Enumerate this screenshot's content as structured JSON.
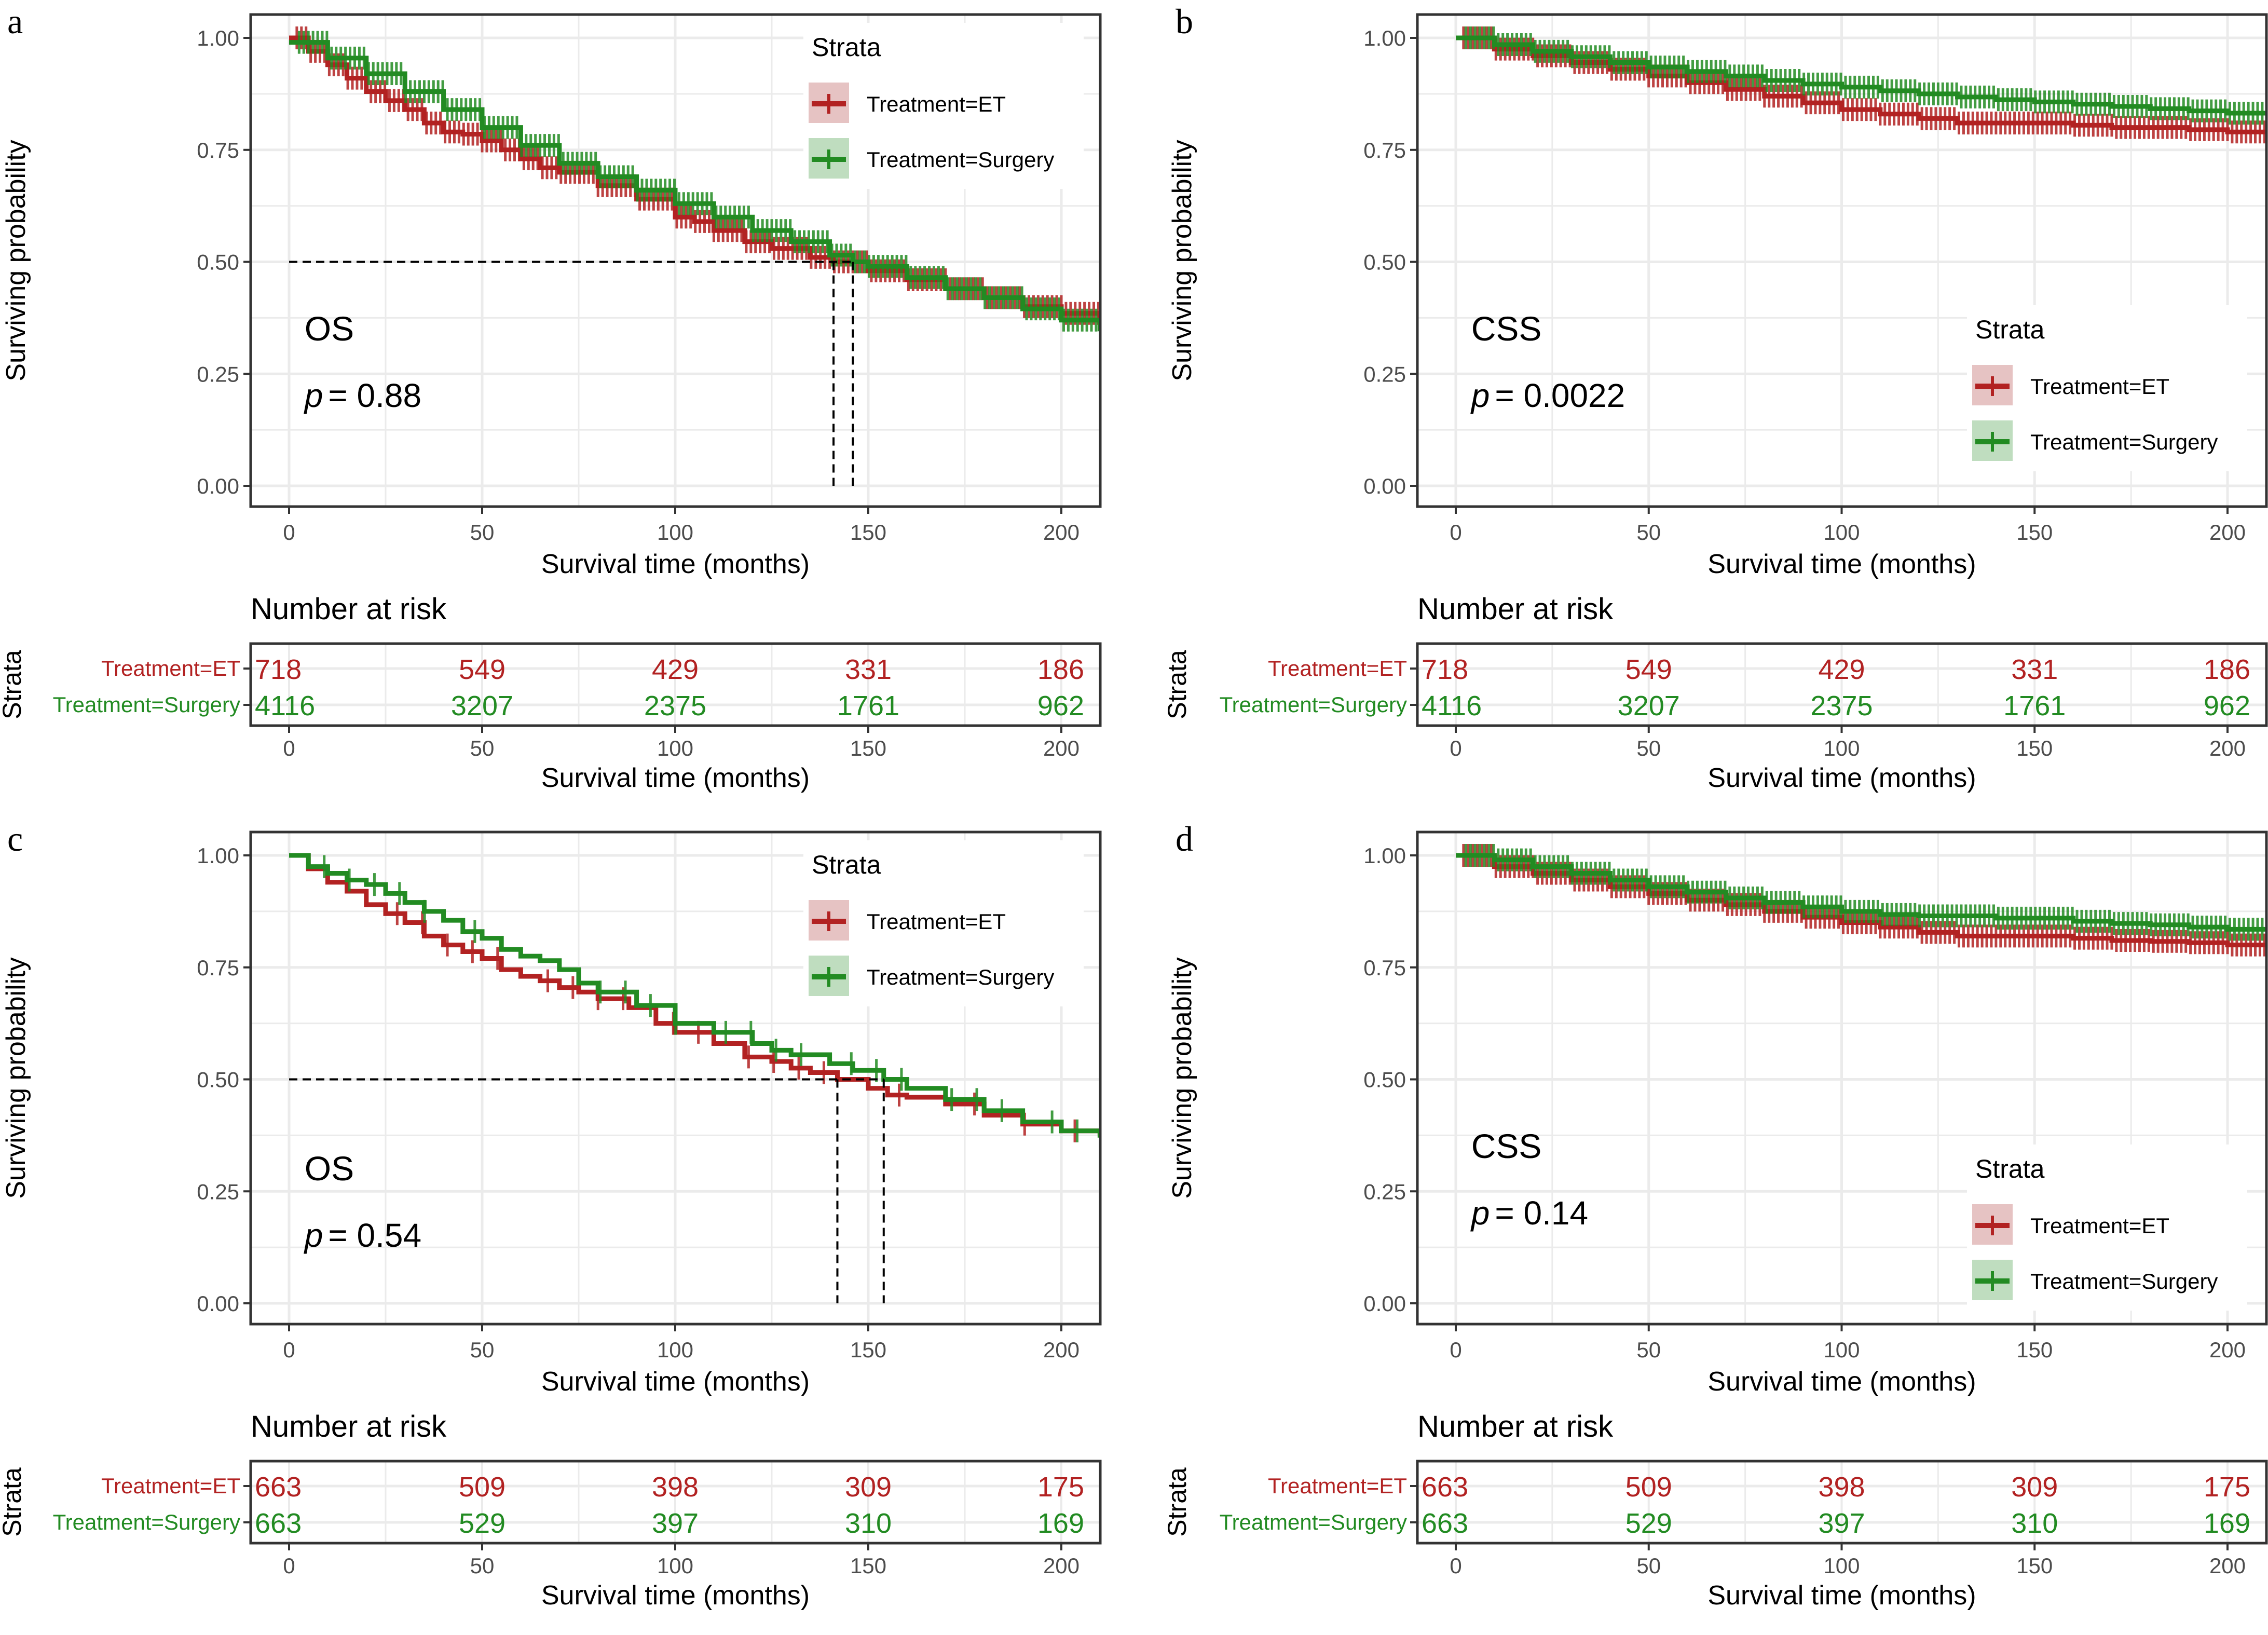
{
  "figure": {
    "colors": {
      "et": "#B22222",
      "surgery": "#228B22",
      "et_key_bg": "#E6C3C3",
      "surgery_key_bg": "#BFDDBF",
      "grid": "#EBEBEB",
      "frame": "#333333",
      "median_line": "#000000"
    }
  },
  "chart_data": [
    {
      "panel": "a",
      "type": "line",
      "title": "",
      "annotation": "OS",
      "p_label": "p",
      "p_value": "= 0.88",
      "xlabel": "Survival time (months)",
      "ylabel": "Surviving probability",
      "xlim": [
        -10,
        210
      ],
      "ylim": [
        -0.05,
        1.05
      ],
      "x_ticks": [
        "0",
        "50",
        "100",
        "150",
        "200"
      ],
      "x_tick_values": [
        0,
        50,
        100,
        150,
        200
      ],
      "y_ticks": [
        "0.00",
        "0.25",
        "0.50",
        "0.75",
        "1.00"
      ],
      "y_tick_values": [
        0,
        0.25,
        0.5,
        0.75,
        1.0
      ],
      "grid": true,
      "legend": {
        "title": "Strata",
        "position": "top-right",
        "entries": [
          "Treatment=ET",
          "Treatment=Surgery"
        ]
      },
      "median_survival": {
        "y": 0.5,
        "x": [
          141,
          146
        ]
      },
      "censor_density": "high",
      "series": [
        {
          "name": "Treatment=ET",
          "color_key": "et",
          "x": [
            0,
            5,
            10,
            15,
            20,
            25,
            30,
            35,
            40,
            45,
            50,
            55,
            60,
            65,
            70,
            80,
            90,
            100,
            105,
            110,
            118,
            125,
            135,
            141,
            150,
            160,
            170,
            180,
            190,
            200,
            210
          ],
          "y": [
            1.0,
            0.97,
            0.94,
            0.91,
            0.88,
            0.86,
            0.84,
            0.81,
            0.79,
            0.785,
            0.77,
            0.75,
            0.73,
            0.71,
            0.7,
            0.67,
            0.64,
            0.6,
            0.59,
            0.57,
            0.545,
            0.53,
            0.51,
            0.5,
            0.48,
            0.46,
            0.44,
            0.42,
            0.4,
            0.385,
            0.375
          ]
        },
        {
          "name": "Treatment=Surgery",
          "color_key": "surgery",
          "x": [
            0,
            10,
            20,
            30,
            40,
            50,
            60,
            70,
            80,
            90,
            100,
            110,
            120,
            130,
            140,
            146,
            150,
            160,
            170,
            180,
            190,
            200,
            210
          ],
          "y": [
            0.99,
            0.955,
            0.92,
            0.88,
            0.84,
            0.8,
            0.76,
            0.72,
            0.69,
            0.66,
            0.63,
            0.6,
            0.57,
            0.545,
            0.515,
            0.5,
            0.49,
            0.465,
            0.44,
            0.42,
            0.395,
            0.37,
            0.345
          ]
        }
      ],
      "risk_table": {
        "title": "Number at risk",
        "strata_axis_label": "Strata",
        "xlabel": "Survival time (months)",
        "times": [
          0,
          50,
          100,
          150,
          200
        ],
        "rows": [
          {
            "label": "Treatment=ET",
            "color_key": "et",
            "values": [
              "718",
              "549",
              "429",
              "331",
              "186"
            ]
          },
          {
            "label": "Treatment=Surgery",
            "color_key": "surgery",
            "values": [
              "4116",
              "3207",
              "2375",
              "1761",
              "962"
            ]
          }
        ]
      }
    },
    {
      "panel": "b",
      "type": "line",
      "title": "",
      "annotation": "CSS",
      "p_label": "p",
      "p_value": "= 0.0022",
      "xlabel": "Survival time (months)",
      "ylabel": "Surviving probability",
      "xlim": [
        -10,
        200
      ],
      "ylim": [
        -0.05,
        1.05
      ],
      "x_ticks": [
        "0",
        "50",
        "100",
        "150",
        "200"
      ],
      "x_tick_values": [
        0,
        50,
        100,
        150,
        200
      ],
      "y_ticks": [
        "0.00",
        "0.25",
        "0.50",
        "0.75",
        "1.00"
      ],
      "y_tick_values": [
        0,
        0.25,
        0.5,
        0.75,
        1.0
      ],
      "grid": true,
      "legend": {
        "title": "Strata",
        "position": "bottom-right",
        "entries": [
          "Treatment=ET",
          "Treatment=Surgery"
        ]
      },
      "median_survival": null,
      "censor_density": "high",
      "series": [
        {
          "name": "Treatment=ET",
          "color_key": "et",
          "x": [
            0,
            10,
            20,
            30,
            40,
            50,
            60,
            70,
            80,
            90,
            100,
            110,
            120,
            130,
            140,
            150,
            160,
            170,
            180,
            190,
            200,
            210
          ],
          "y": [
            1.0,
            0.975,
            0.96,
            0.945,
            0.93,
            0.915,
            0.9,
            0.885,
            0.87,
            0.855,
            0.84,
            0.83,
            0.82,
            0.81,
            0.81,
            0.81,
            0.805,
            0.8,
            0.8,
            0.795,
            0.79,
            0.785
          ]
        },
        {
          "name": "Treatment=Surgery",
          "color_key": "surgery",
          "x": [
            0,
            10,
            20,
            30,
            40,
            50,
            60,
            70,
            80,
            90,
            100,
            110,
            120,
            130,
            140,
            150,
            160,
            170,
            180,
            190,
            200,
            210
          ],
          "y": [
            1.0,
            0.985,
            0.97,
            0.958,
            0.945,
            0.935,
            0.925,
            0.915,
            0.905,
            0.897,
            0.89,
            0.882,
            0.875,
            0.868,
            0.862,
            0.857,
            0.852,
            0.847,
            0.842,
            0.837,
            0.832,
            0.828
          ]
        }
      ],
      "risk_table": {
        "title": "Number at risk",
        "strata_axis_label": "Strata",
        "xlabel": "Survival time (months)",
        "times": [
          0,
          50,
          100,
          150,
          200
        ],
        "rows": [
          {
            "label": "Treatment=ET",
            "color_key": "et",
            "values": [
              "718",
              "549",
              "429",
              "331",
              "186"
            ]
          },
          {
            "label": "Treatment=Surgery",
            "color_key": "surgery",
            "values": [
              "4116",
              "3207",
              "2375",
              "1761",
              "962"
            ]
          }
        ]
      }
    },
    {
      "panel": "c",
      "type": "line",
      "title": "",
      "annotation": "OS",
      "p_label": "p",
      "p_value": "= 0.54",
      "xlabel": "Survival time (months)",
      "ylabel": "Surviving probability",
      "xlim": [
        -10,
        210
      ],
      "ylim": [
        -0.05,
        1.05
      ],
      "x_ticks": [
        "0",
        "50",
        "100",
        "150",
        "200"
      ],
      "x_tick_values": [
        0,
        50,
        100,
        150,
        200
      ],
      "y_ticks": [
        "0.00",
        "0.25",
        "0.50",
        "0.75",
        "1.00"
      ],
      "y_tick_values": [
        0,
        0.25,
        0.5,
        0.75,
        1.0
      ],
      "grid": true,
      "legend": {
        "title": "Strata",
        "position": "top-right",
        "entries": [
          "Treatment=ET",
          "Treatment=Surgery"
        ]
      },
      "median_survival": {
        "y": 0.5,
        "x": [
          142,
          154
        ]
      },
      "censor_density": "low",
      "series": [
        {
          "name": "Treatment=ET",
          "color_key": "et",
          "x": [
            0,
            5,
            10,
            15,
            20,
            25,
            30,
            35,
            40,
            45,
            50,
            55,
            60,
            65,
            70,
            75,
            80,
            88,
            95,
            100,
            110,
            118,
            125,
            130,
            135,
            142,
            150,
            155,
            160,
            170,
            180,
            190,
            200,
            210
          ],
          "y": [
            1.0,
            0.97,
            0.94,
            0.92,
            0.89,
            0.87,
            0.85,
            0.82,
            0.8,
            0.785,
            0.77,
            0.745,
            0.73,
            0.72,
            0.705,
            0.695,
            0.68,
            0.66,
            0.625,
            0.605,
            0.58,
            0.55,
            0.54,
            0.525,
            0.515,
            0.5,
            0.48,
            0.465,
            0.46,
            0.445,
            0.42,
            0.4,
            0.385,
            0.375
          ]
        },
        {
          "name": "Treatment=Surgery",
          "color_key": "surgery",
          "x": [
            0,
            5,
            10,
            15,
            20,
            25,
            30,
            35,
            40,
            45,
            50,
            55,
            60,
            65,
            70,
            75,
            80,
            90,
            100,
            110,
            120,
            125,
            130,
            140,
            146,
            154,
            160,
            170,
            180,
            190,
            200,
            210
          ],
          "y": [
            1.0,
            0.975,
            0.96,
            0.945,
            0.935,
            0.915,
            0.895,
            0.875,
            0.855,
            0.83,
            0.815,
            0.79,
            0.775,
            0.765,
            0.745,
            0.715,
            0.695,
            0.665,
            0.625,
            0.605,
            0.58,
            0.565,
            0.555,
            0.535,
            0.52,
            0.5,
            0.48,
            0.455,
            0.43,
            0.405,
            0.385,
            0.37
          ]
        }
      ],
      "risk_table": {
        "title": "Number at risk",
        "strata_axis_label": "Strata",
        "xlabel": "Survival time (months)",
        "times": [
          0,
          50,
          100,
          150,
          200
        ],
        "rows": [
          {
            "label": "Treatment=ET",
            "color_key": "et",
            "values": [
              "663",
              "509",
              "398",
              "309",
              "175"
            ]
          },
          {
            "label": "Treatment=Surgery",
            "color_key": "surgery",
            "values": [
              "663",
              "529",
              "397",
              "310",
              "169"
            ]
          }
        ]
      }
    },
    {
      "panel": "d",
      "type": "line",
      "title": "",
      "annotation": "CSS",
      "p_label": "p",
      "p_value": "= 0.14",
      "xlabel": "Survival time (months)",
      "ylabel": "Surviving probability",
      "xlim": [
        -10,
        200
      ],
      "ylim": [
        -0.05,
        1.05
      ],
      "x_ticks": [
        "0",
        "50",
        "100",
        "150",
        "200"
      ],
      "x_tick_values": [
        0,
        50,
        100,
        150,
        200
      ],
      "y_ticks": [
        "0.00",
        "0.25",
        "0.50",
        "0.75",
        "1.00"
      ],
      "y_tick_values": [
        0,
        0.25,
        0.5,
        0.75,
        1.0
      ],
      "grid": true,
      "legend": {
        "title": "Strata",
        "position": "bottom-right",
        "entries": [
          "Treatment=ET",
          "Treatment=Surgery"
        ]
      },
      "median_survival": null,
      "censor_density": "high",
      "series": [
        {
          "name": "Treatment=ET",
          "color_key": "et",
          "x": [
            0,
            10,
            20,
            30,
            40,
            50,
            60,
            70,
            80,
            90,
            100,
            110,
            120,
            130,
            140,
            150,
            160,
            170,
            180,
            190,
            200,
            210
          ],
          "y": [
            1.0,
            0.975,
            0.96,
            0.945,
            0.93,
            0.915,
            0.9,
            0.89,
            0.875,
            0.862,
            0.85,
            0.84,
            0.828,
            0.82,
            0.82,
            0.82,
            0.815,
            0.81,
            0.808,
            0.805,
            0.8,
            0.795
          ]
        },
        {
          "name": "Treatment=Surgery",
          "color_key": "surgery",
          "x": [
            0,
            10,
            20,
            30,
            40,
            50,
            60,
            70,
            80,
            90,
            100,
            110,
            120,
            130,
            140,
            150,
            160,
            170,
            180,
            190,
            200,
            210
          ],
          "y": [
            1.0,
            0.99,
            0.975,
            0.96,
            0.945,
            0.93,
            0.918,
            0.905,
            0.895,
            0.885,
            0.875,
            0.868,
            0.865,
            0.865,
            0.86,
            0.86,
            0.853,
            0.848,
            0.845,
            0.84,
            0.835,
            0.83
          ]
        }
      ],
      "risk_table": {
        "title": "Number at risk",
        "strata_axis_label": "Strata",
        "xlabel": "Survival time (months)",
        "times": [
          0,
          50,
          100,
          150,
          200
        ],
        "rows": [
          {
            "label": "Treatment=ET",
            "color_key": "et",
            "values": [
              "663",
              "509",
              "398",
              "309",
              "175"
            ]
          },
          {
            "label": "Treatment=Surgery",
            "color_key": "surgery",
            "values": [
              "663",
              "529",
              "397",
              "310",
              "169"
            ]
          }
        ]
      }
    }
  ]
}
